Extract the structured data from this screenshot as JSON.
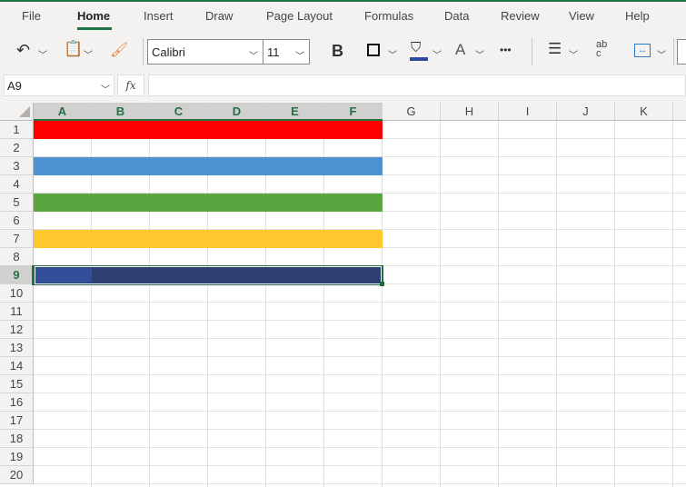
{
  "menu": {
    "items": [
      "File",
      "Home",
      "Insert",
      "Draw",
      "Page Layout",
      "Formulas",
      "Data",
      "Review",
      "View",
      "Help"
    ],
    "active": "Home"
  },
  "toolbar": {
    "font": "Calibri",
    "size": "11",
    "bold": "B",
    "font_color_letter": "A",
    "more": "•••",
    "wrap": "ab\nc"
  },
  "formula_bar": {
    "name_box": "A9",
    "fx": "fx",
    "value": ""
  },
  "sheet": {
    "columns": [
      "A",
      "B",
      "C",
      "D",
      "E",
      "F",
      "G",
      "H",
      "I",
      "J",
      "K"
    ],
    "rows": [
      "1",
      "2",
      "3",
      "4",
      "5",
      "6",
      "7",
      "8",
      "9",
      "10",
      "11",
      "12",
      "13",
      "14",
      "15",
      "16",
      "17",
      "18",
      "19",
      "20"
    ],
    "selected_cell": "A9",
    "fills": [
      {
        "row": 1,
        "range": "A:F",
        "color": "#ff0000"
      },
      {
        "row": 3,
        "range": "A:F",
        "color": "#4e91d0"
      },
      {
        "row": 5,
        "range": "A:F",
        "color": "#5aa540"
      },
      {
        "row": 7,
        "range": "A:F",
        "color": "#ffc62e"
      },
      {
        "row": 9,
        "range": "A:F",
        "color": "#2e3f72"
      }
    ]
  },
  "colors": {
    "accent": "#217346",
    "fill_color_bar": "#2f4a9e"
  }
}
